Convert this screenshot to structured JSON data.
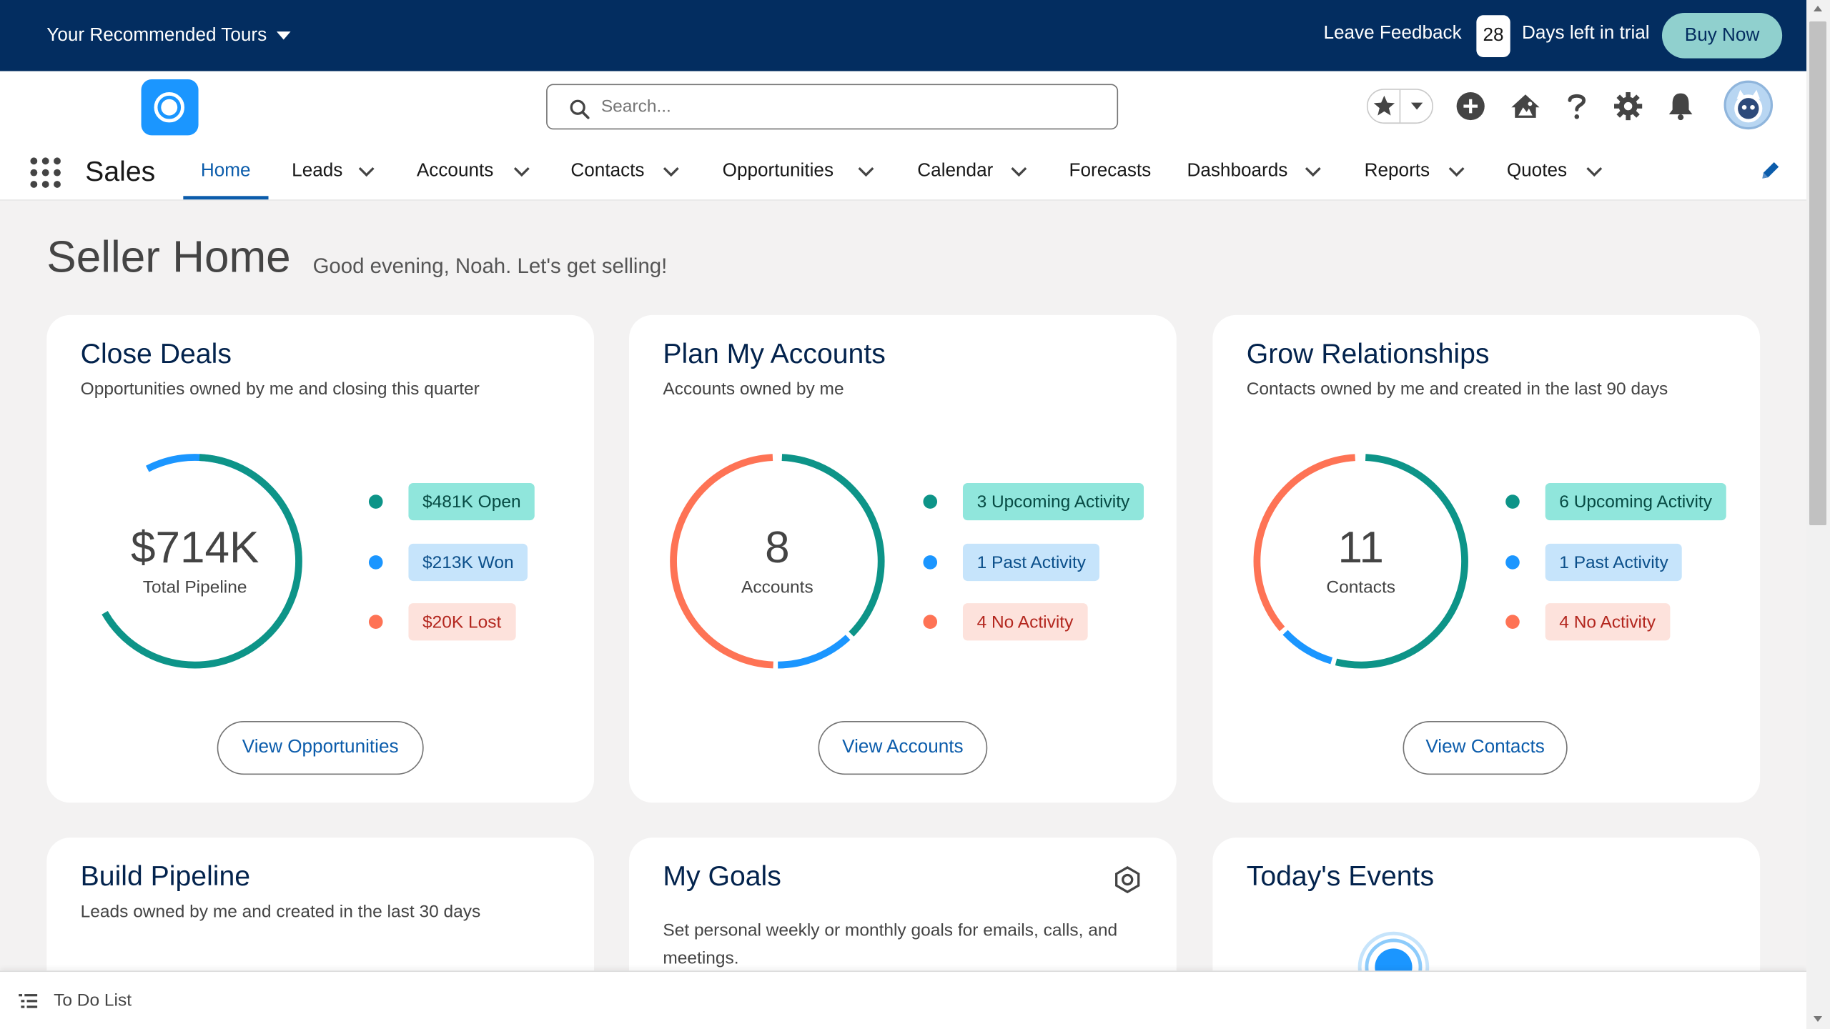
{
  "trial_bar": {
    "tours_label": "Your Recommended Tours",
    "feedback_label": "Leave Feedback",
    "days_left": "28",
    "days_label": "Days left in trial",
    "buy_label": "Buy Now"
  },
  "search": {
    "placeholder": "Search..."
  },
  "app": {
    "name": "Sales"
  },
  "nav": {
    "home": "Home",
    "leads": "Leads",
    "accounts": "Accounts",
    "contacts": "Contacts",
    "opportunities": "Opportunities",
    "calendar": "Calendar",
    "forecasts": "Forecasts",
    "dashboards": "Dashboards",
    "reports": "Reports",
    "quotes": "Quotes"
  },
  "page": {
    "title": "Seller Home",
    "greeting": "Good evening, Noah. Let's get selling!"
  },
  "cards": {
    "close_deals": {
      "title": "Close Deals",
      "subtitle": "Opportunities owned by me and closing this quarter",
      "center_value": "$714K",
      "center_label": "Total Pipeline",
      "legend": [
        "$481K Open",
        "$213K Won",
        "$20K Lost"
      ],
      "button": "View Opportunities"
    },
    "plan_accounts": {
      "title": "Plan My Accounts",
      "subtitle": "Accounts owned by me",
      "center_value": "8",
      "center_label": "Accounts",
      "legend": [
        "3 Upcoming Activity",
        "1 Past Activity",
        "4 No Activity"
      ],
      "button": "View Accounts"
    },
    "grow_relationships": {
      "title": "Grow Relationships",
      "subtitle": "Contacts owned by me and created in the last 90 days",
      "center_value": "11",
      "center_label": "Contacts",
      "legend": [
        "6 Upcoming Activity",
        "1 Past Activity",
        "4 No Activity"
      ],
      "button": "View Contacts"
    },
    "build_pipeline": {
      "title": "Build Pipeline",
      "subtitle": "Leads owned by me and created in the last 30 days"
    },
    "my_goals": {
      "title": "My Goals",
      "text": "Set personal weekly or monthly goals for emails, calls, and meetings."
    },
    "todays_events": {
      "title": "Today's Events"
    }
  },
  "utility_bar": {
    "todo_label": "To Do List"
  },
  "colors": {
    "teal": "#0d9488",
    "blue": "#1b96ff",
    "red": "#fe7355",
    "navy": "#032d60",
    "brand_blue": "#0b5cab"
  },
  "icons": [
    "search-icon",
    "star-icon",
    "chevron-down-icon",
    "plus-icon",
    "trailhead-icon",
    "help-icon",
    "gear-icon",
    "bell-icon",
    "waffle-icon",
    "pencil-icon",
    "list-icon"
  ]
}
